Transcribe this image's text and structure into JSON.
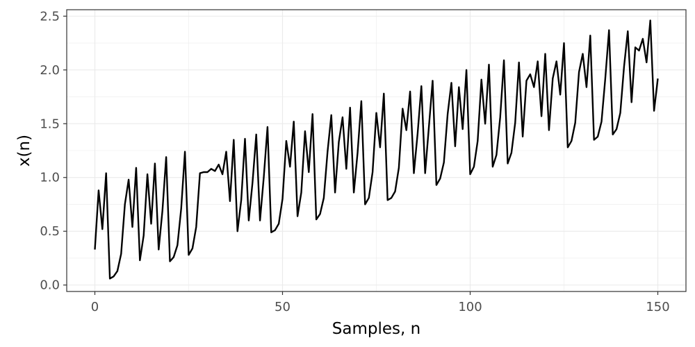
{
  "chart_data": {
    "type": "line",
    "title": "",
    "xlabel": "Samples, n",
    "ylabel": "x(n)",
    "xlim": [
      -7.5,
      157.5
    ],
    "ylim": [
      -0.06,
      2.56
    ],
    "x_ticks": [
      0,
      50,
      100,
      150
    ],
    "x_tick_labels": [
      "0",
      "50",
      "100",
      "150"
    ],
    "y_ticks": [
      0.0,
      0.5,
      1.0,
      1.5,
      2.0,
      2.5
    ],
    "y_tick_labels": [
      "0.0",
      "0.5",
      "1.0",
      "1.5",
      "2.0",
      "2.5"
    ],
    "grid": true,
    "legend": "none",
    "colors": {
      "line": "#000000",
      "grid": "#ebebeb",
      "panel_border": "#333333",
      "tick_text": "#4d4d4d"
    },
    "series": [
      {
        "x": [
          0,
          1,
          2,
          3,
          4,
          5,
          6,
          7,
          8,
          9,
          10,
          11,
          12,
          13,
          14,
          15,
          16,
          17,
          18,
          19,
          20,
          21,
          22,
          23,
          24,
          25,
          26,
          27,
          28,
          29,
          30,
          31,
          32,
          33,
          34,
          35,
          36,
          37,
          38,
          39,
          40,
          41,
          42,
          43,
          44,
          45,
          46,
          47,
          48,
          49,
          50,
          51,
          52,
          53,
          54,
          55,
          56,
          57,
          58,
          59,
          60,
          61,
          62,
          63,
          64,
          65,
          66,
          67,
          68,
          69,
          70,
          71,
          72,
          73,
          74,
          75,
          76,
          77,
          78,
          79,
          80,
          81,
          82,
          83,
          84,
          85,
          86,
          87,
          88,
          89,
          90,
          91,
          92,
          93,
          94,
          95,
          96,
          97,
          98,
          99,
          100,
          101,
          102,
          103,
          104,
          105,
          106,
          107,
          108,
          109,
          110,
          111,
          112,
          113,
          114,
          115,
          116,
          117,
          118,
          119,
          120,
          121,
          122,
          123,
          124,
          125,
          126,
          127,
          128,
          129,
          130,
          131,
          132,
          133,
          134,
          135,
          136,
          137,
          138,
          139,
          140,
          141,
          142,
          143,
          144,
          145,
          146,
          147,
          148,
          149,
          150
        ],
        "y": [
          0.33,
          0.88,
          0.52,
          1.04,
          0.06,
          0.08,
          0.13,
          0.29,
          0.75,
          0.98,
          0.54,
          1.09,
          0.23,
          0.46,
          1.03,
          0.57,
          1.13,
          0.33,
          0.69,
          1.19,
          0.22,
          0.26,
          0.37,
          0.71,
          1.24,
          0.28,
          0.34,
          0.54,
          1.04,
          1.05,
          1.05,
          1.08,
          1.06,
          1.12,
          1.03,
          1.24,
          0.78,
          1.35,
          0.5,
          0.79,
          1.36,
          0.6,
          0.95,
          1.4,
          0.6,
          1.0,
          1.47,
          0.49,
          0.51,
          0.57,
          0.8,
          1.34,
          1.1,
          1.52,
          0.64,
          0.86,
          1.43,
          1.05,
          1.59,
          0.61,
          0.66,
          0.81,
          1.24,
          1.58,
          0.86,
          1.33,
          1.56,
          1.08,
          1.65,
          0.86,
          1.23,
          1.71,
          0.75,
          0.81,
          1.05,
          1.6,
          1.28,
          1.78,
          0.79,
          0.81,
          0.87,
          1.09,
          1.64,
          1.44,
          1.8,
          1.04,
          1.41,
          1.85,
          1.04,
          1.47,
          1.9,
          0.93,
          0.99,
          1.14,
          1.59,
          1.88,
          1.29,
          1.84,
          1.45,
          2.0,
          1.03,
          1.1,
          1.34,
          1.91,
          1.5,
          2.05,
          1.1,
          1.21,
          1.56,
          2.09,
          1.13,
          1.23,
          1.51,
          2.07,
          1.38,
          1.9,
          1.96,
          1.84,
          2.08,
          1.57,
          2.15,
          1.44,
          1.92,
          2.08,
          1.77,
          2.25,
          1.28,
          1.34,
          1.51,
          1.98,
          2.15,
          1.84,
          2.32,
          1.35,
          1.38,
          1.52,
          1.92,
          2.37,
          1.4,
          1.45,
          1.6,
          2.03,
          2.36,
          1.7,
          2.21,
          2.18,
          2.29,
          2.07,
          2.46,
          1.62,
          1.92
        ]
      }
    ]
  }
}
